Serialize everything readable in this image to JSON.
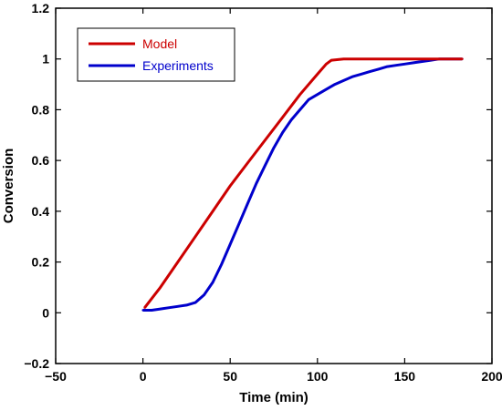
{
  "chart_data": {
    "type": "line",
    "xlabel": "Time (min)",
    "ylabel": "Conversion",
    "xlim": [
      -50,
      200
    ],
    "ylim": [
      -0.2,
      1.2
    ],
    "xticks": [
      -50,
      0,
      50,
      100,
      150,
      200
    ],
    "xtick_labels": [
      "−50",
      "0",
      "50",
      "100",
      "150",
      "200"
    ],
    "yticks": [
      -0.2,
      0,
      0.2,
      0.4,
      0.6,
      0.8,
      1,
      1.2
    ],
    "ytick_labels": [
      "−0.2",
      "0",
      "0.2",
      "0.4",
      "0.6",
      "0.8",
      "1",
      "1.2"
    ],
    "grid": false,
    "legend": {
      "position": "top-left",
      "entries": [
        "Model",
        "Experiments"
      ]
    },
    "series": [
      {
        "name": "Model",
        "color": "#cc0000",
        "x": [
          1,
          10,
          20,
          30,
          40,
          50,
          60,
          70,
          80,
          90,
          100,
          105,
          108,
          115,
          125,
          140,
          160,
          183
        ],
        "y": [
          0.02,
          0.1,
          0.2,
          0.3,
          0.4,
          0.5,
          0.59,
          0.68,
          0.77,
          0.86,
          0.94,
          0.98,
          0.995,
          1.0,
          1.0,
          1.0,
          1.0,
          1.0
        ]
      },
      {
        "name": "Experiments",
        "color": "#0000cc",
        "x": [
          0,
          5,
          10,
          15,
          20,
          25,
          30,
          35,
          40,
          45,
          50,
          55,
          60,
          65,
          70,
          75,
          80,
          85,
          90,
          95,
          100,
          105,
          110,
          115,
          120,
          125,
          130,
          135,
          140,
          145,
          150,
          155,
          160,
          165,
          170,
          175,
          180,
          183
        ],
        "y": [
          0.01,
          0.01,
          0.015,
          0.02,
          0.025,
          0.03,
          0.04,
          0.07,
          0.12,
          0.19,
          0.27,
          0.35,
          0.43,
          0.51,
          0.58,
          0.65,
          0.71,
          0.76,
          0.8,
          0.84,
          0.86,
          0.88,
          0.9,
          0.915,
          0.93,
          0.94,
          0.95,
          0.96,
          0.97,
          0.975,
          0.98,
          0.985,
          0.99,
          0.995,
          1.0,
          1.0,
          1.0,
          1.0
        ]
      }
    ]
  }
}
